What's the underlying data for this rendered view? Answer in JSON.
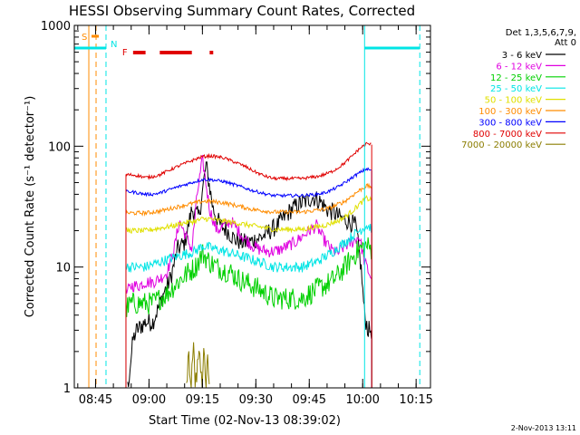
{
  "chart_data": {
    "type": "line",
    "title": "HESSI Observing Summary Count Rates, Corrected",
    "xlabel": "Start Time (02-Nov-13 08:39:02)",
    "ylabel": "Corrected Count Rate (s⁻¹ detector⁻¹)",
    "y_scale": "log",
    "ylim": [
      1,
      1000
    ],
    "y_ticks": [
      {
        "value": 1,
        "label": "1"
      },
      {
        "value": 10,
        "label": "10"
      },
      {
        "value": 100,
        "label": "100"
      },
      {
        "value": 1000,
        "label": "1000"
      }
    ],
    "x_unit": "minutes after 08:39:02",
    "xlim": [
      0,
      100
    ],
    "x_ticks": [
      {
        "value": 5.97,
        "label": "08:45"
      },
      {
        "value": 20.97,
        "label": "09:00"
      },
      {
        "value": 35.97,
        "label": "09:15"
      },
      {
        "value": 50.97,
        "label": "09:30"
      },
      {
        "value": 65.97,
        "label": "09:45"
      },
      {
        "value": 80.97,
        "label": "10:00"
      },
      {
        "value": 95.97,
        "label": "10:15"
      }
    ],
    "legend": {
      "title_lines": [
        "Det 1,3,5,6,7,9,",
        "Att 0"
      ],
      "placement": "right"
    },
    "series": [
      {
        "name": "3 - 6 keV",
        "color": "#000000",
        "x": [
          15,
          16.5,
          17.5,
          20,
          22,
          23.5,
          25,
          27,
          29,
          31,
          33,
          35,
          37,
          39,
          41,
          43,
          45,
          47,
          49,
          51,
          53,
          55,
          57,
          59,
          61,
          63,
          65,
          67,
          69,
          71,
          73,
          75,
          77,
          79,
          80.5,
          81.5,
          82.5,
          83.5
        ],
        "values": [
          1,
          2.5,
          3,
          3.5,
          3.5,
          4.5,
          6,
          8,
          14,
          16,
          30,
          26,
          70,
          30,
          22,
          20,
          17,
          16,
          16,
          17,
          18,
          20,
          22,
          26,
          30,
          33,
          35,
          38,
          35,
          30,
          28,
          25,
          24,
          22,
          10,
          4,
          3,
          3
        ]
      },
      {
        "name": "6 - 12 keV",
        "color": "#e000e0",
        "x": [
          14.5,
          16,
          18,
          20,
          22,
          24,
          26,
          28,
          29.5,
          31,
          33,
          34.5,
          36,
          38,
          40,
          42,
          44,
          46,
          48,
          50,
          52,
          54,
          56,
          58,
          60,
          62,
          64,
          66,
          68,
          70,
          72,
          74,
          76,
          78,
          80,
          81.5,
          83.5
        ],
        "values": [
          6,
          7,
          7,
          7.5,
          7.5,
          8,
          9,
          14,
          24,
          19,
          14,
          40,
          78,
          30,
          20,
          22,
          24,
          20,
          17,
          15,
          14,
          13.5,
          13.5,
          14,
          15,
          16,
          18,
          20,
          22,
          17,
          14,
          13,
          15,
          16,
          18,
          11,
          8
        ]
      },
      {
        "name": "12 - 25 keV",
        "color": "#00d000",
        "x": [
          14.5,
          16,
          18,
          20,
          22,
          24,
          26,
          28,
          30,
          32,
          34,
          36,
          38,
          40,
          42,
          44,
          46,
          48,
          50,
          52,
          54,
          56,
          58,
          60,
          62,
          64,
          66,
          68,
          70,
          72,
          74,
          76,
          78,
          80,
          82,
          83.5
        ],
        "values": [
          4.5,
          5,
          5,
          5,
          5,
          5.5,
          6,
          7,
          8,
          9,
          10,
          13,
          11,
          10,
          9.5,
          9,
          8,
          7.5,
          7,
          6.5,
          6,
          5.5,
          5.5,
          5.5,
          5.5,
          5.5,
          6,
          6.5,
          7,
          7.5,
          8.5,
          10,
          12,
          14,
          15,
          14
        ]
      },
      {
        "name": "25 - 50 keV",
        "color": "#00e5e5",
        "x": [
          14.5,
          16,
          18,
          20,
          22,
          24,
          26,
          28,
          30,
          32,
          34,
          36,
          38,
          40,
          42,
          44,
          46,
          48,
          50,
          52,
          54,
          56,
          58,
          60,
          62,
          64,
          66,
          68,
          70,
          72,
          74,
          76,
          78,
          80,
          82,
          83.5
        ],
        "values": [
          10,
          10,
          10,
          10,
          10.5,
          11,
          11.5,
          12,
          12.5,
          13,
          13.5,
          15,
          14.5,
          14,
          13.5,
          13,
          12.5,
          12,
          11.5,
          11,
          10.5,
          10,
          10,
          10,
          10,
          10,
          10.5,
          11,
          12,
          13,
          14.5,
          16,
          18,
          20,
          22,
          21
        ]
      },
      {
        "name": "50 - 100 keV",
        "color": "#e0e000",
        "x": [
          14.5,
          16,
          18,
          20,
          22,
          24,
          26,
          28,
          30,
          32,
          34,
          36,
          38,
          40,
          42,
          44,
          46,
          48,
          50,
          52,
          54,
          56,
          58,
          60,
          62,
          64,
          66,
          68,
          70,
          72,
          74,
          76,
          78,
          80,
          82,
          83.5
        ],
        "values": [
          20,
          20,
          20,
          20,
          20.5,
          21,
          21.5,
          22,
          23,
          23.5,
          24,
          25,
          25,
          24.5,
          24,
          23.5,
          23,
          22.5,
          22,
          21.5,
          21,
          20.5,
          20.5,
          20.5,
          20.5,
          20.5,
          21,
          21.5,
          22,
          23,
          24,
          26,
          29,
          33,
          37,
          36
        ]
      },
      {
        "name": "100 - 300 keV",
        "color": "#ff8c00",
        "x": [
          14.5,
          16,
          18,
          20,
          22,
          24,
          26,
          28,
          30,
          32,
          34,
          36,
          38,
          40,
          42,
          44,
          46,
          48,
          50,
          52,
          54,
          56,
          58,
          60,
          62,
          64,
          66,
          68,
          70,
          72,
          74,
          76,
          78,
          80,
          82,
          83.5
        ],
        "values": [
          28,
          28,
          28,
          28,
          28.5,
          29,
          30,
          31,
          32,
          33,
          34,
          35,
          35,
          34.5,
          34,
          33,
          32,
          31,
          30,
          29.5,
          29,
          28.5,
          28.5,
          28.5,
          28.5,
          28.5,
          29,
          29.5,
          30,
          31,
          33,
          35,
          39,
          43,
          47,
          46
        ]
      },
      {
        "name": "300 - 800 keV",
        "color": "#0000ff",
        "x": [
          14.5,
          16,
          18,
          20,
          22,
          24,
          26,
          28,
          30,
          32,
          34,
          36,
          38,
          40,
          42,
          44,
          46,
          48,
          50,
          52,
          54,
          56,
          58,
          60,
          62,
          64,
          66,
          68,
          70,
          72,
          74,
          76,
          78,
          80,
          82,
          83.5
        ],
        "values": [
          42,
          42,
          41,
          40,
          40,
          41,
          43,
          45,
          47,
          49,
          51,
          53,
          53,
          52,
          51,
          49,
          47,
          45,
          43,
          41.5,
          40,
          39,
          39,
          39,
          39,
          39,
          39.5,
          40,
          41,
          43,
          46,
          50,
          55,
          60,
          65,
          63
        ]
      },
      {
        "name": "800 - 7000 keV",
        "color": "#e00000",
        "x": [
          14.5,
          16,
          18,
          20,
          22,
          24,
          26,
          28,
          30,
          32,
          34,
          36,
          38,
          40,
          42,
          44,
          46,
          48,
          50,
          52,
          54,
          56,
          58,
          60,
          62,
          64,
          66,
          68,
          70,
          72,
          74,
          76,
          78,
          80,
          82,
          83.5
        ],
        "values": [
          58,
          58,
          57,
          55,
          56,
          58,
          62,
          66,
          70,
          74,
          78,
          82,
          83,
          82,
          80,
          76,
          72,
          68,
          63,
          59,
          56,
          54,
          54,
          54,
          54,
          54,
          55,
          56,
          58,
          61,
          66,
          73,
          83,
          95,
          105,
          103
        ]
      },
      {
        "name": "7000 - 20000 keV",
        "color": "#8b7d00",
        "x": [
          31.5,
          32,
          32.5,
          33,
          33.5,
          34,
          34.5,
          35,
          35.5,
          36,
          36.5,
          37,
          37.5,
          38
        ],
        "values": [
          1,
          1.8,
          1,
          1.2,
          2,
          1,
          1.5,
          2.5,
          1,
          1.3,
          2.2,
          1,
          1.6,
          1
        ]
      }
    ],
    "annotations": [
      {
        "label": "S",
        "color": "#ff8c00",
        "x": 5.6
      },
      {
        "label": "N",
        "color": "#00e5e5",
        "x": 8.9
      },
      {
        "label": "F",
        "color": "#e00000",
        "segments": [
          [
            16.5,
            20
          ],
          [
            24,
            33
          ],
          [
            38,
            39
          ]
        ]
      }
    ],
    "footer_date": "2-Nov-2013 13:11"
  }
}
